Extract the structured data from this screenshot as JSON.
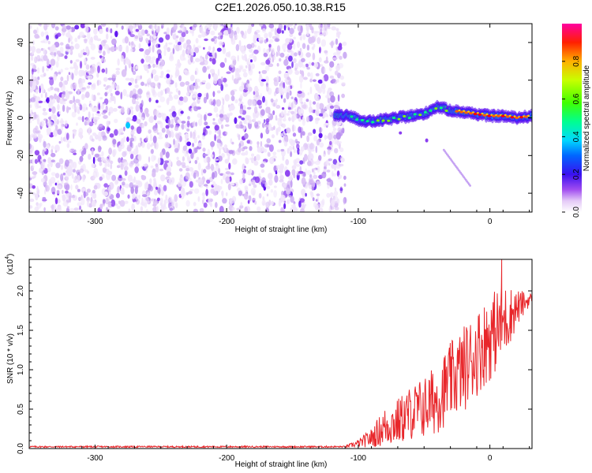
{
  "title": "C2E1.2026.050.10.38.R15",
  "colors": {
    "spectral_low": "#c8a6f0",
    "spectral_mid": "#7a18e8",
    "snr_line": "#e8262a",
    "axis": "#000000"
  },
  "colormap": [
    "#ffffff",
    "#f0e4fb",
    "#ddc4f6",
    "#b98ff0",
    "#8b3ef0",
    "#5e12f0",
    "#1a20ff",
    "#00c8ff",
    "#00ff80",
    "#80ff00",
    "#ffd000",
    "#ff6000",
    "#ff0000"
  ],
  "chart_data": [
    {
      "type": "heatmap",
      "title": "C2E1.2026.050.10.38.R15",
      "xlabel": "Height of straight line (km)",
      "ylabel": "Frequency (Hz)",
      "xlim": [
        -350,
        32
      ],
      "ylim": [
        -50,
        50
      ],
      "xticks": [
        -300,
        -200,
        -100,
        0
      ],
      "yticks": [
        -40,
        -20,
        0,
        20,
        40
      ],
      "noise_region_x": [
        -350,
        -110
      ],
      "signal_track": [
        {
          "x": -110,
          "y": 2
        },
        {
          "x": -100,
          "y": -1
        },
        {
          "x": -90,
          "y": -2
        },
        {
          "x": -80,
          "y": -1
        },
        {
          "x": -70,
          "y": 0
        },
        {
          "x": -60,
          "y": 1
        },
        {
          "x": -50,
          "y": 2
        },
        {
          "x": -40,
          "y": 6
        },
        {
          "x": -30,
          "y": 4
        },
        {
          "x": -20,
          "y": 3
        },
        {
          "x": -10,
          "y": 2
        },
        {
          "x": 0,
          "y": 1
        },
        {
          "x": 10,
          "y": 1
        },
        {
          "x": 20,
          "y": 0
        },
        {
          "x": 32,
          "y": 1
        }
      ],
      "secondary_trace": [
        {
          "x": -35,
          "y": -17
        },
        {
          "x": -25,
          "y": -27
        },
        {
          "x": -15,
          "y": -36
        }
      ],
      "colorbar": {
        "label": "Normalized spectral amplitude",
        "range": [
          0,
          1
        ],
        "ticks": [
          "0.0",
          "0.2",
          "0.4",
          "0.6",
          "0.8"
        ]
      }
    },
    {
      "type": "line",
      "xlabel": "Height of straight line (km)",
      "ylabel": "SNR (10 * v/v)",
      "yscale_label": "(x10",
      "yscale_exp": "4",
      "yscale_close": ")",
      "xlim": [
        -350,
        32
      ],
      "ylim": [
        0,
        2.4
      ],
      "xticks": [
        -300,
        -200,
        -100,
        0
      ],
      "yticks": [
        "0.0",
        "0.5",
        "1.0",
        "1.5",
        "2.0"
      ],
      "series": [
        {
          "name": "SNR",
          "envelope": [
            {
              "x": -350,
              "base": 0.02,
              "amp": 0.01
            },
            {
              "x": -110,
              "base": 0.02,
              "amp": 0.01
            },
            {
              "x": -100,
              "base": 0.05,
              "amp": 0.05
            },
            {
              "x": -90,
              "base": 0.1,
              "amp": 0.12
            },
            {
              "x": -80,
              "base": 0.2,
              "amp": 0.25
            },
            {
              "x": -70,
              "base": 0.25,
              "amp": 0.3
            },
            {
              "x": -60,
              "base": 0.35,
              "amp": 0.35
            },
            {
              "x": -50,
              "base": 0.4,
              "amp": 0.4
            },
            {
              "x": -40,
              "base": 0.5,
              "amp": 0.45
            },
            {
              "x": -30,
              "base": 0.7,
              "amp": 0.5
            },
            {
              "x": -20,
              "base": 0.85,
              "amp": 0.55
            },
            {
              "x": -10,
              "base": 1.05,
              "amp": 0.55
            },
            {
              "x": 0,
              "base": 1.25,
              "amp": 0.55
            },
            {
              "x": 10,
              "base": 1.45,
              "amp": 0.5
            },
            {
              "x": 20,
              "base": 1.7,
              "amp": 0.25
            },
            {
              "x": 32,
              "base": 1.9,
              "amp": 0.05
            }
          ],
          "peak": {
            "x": 9,
            "y": 2.4
          }
        }
      ]
    }
  ]
}
